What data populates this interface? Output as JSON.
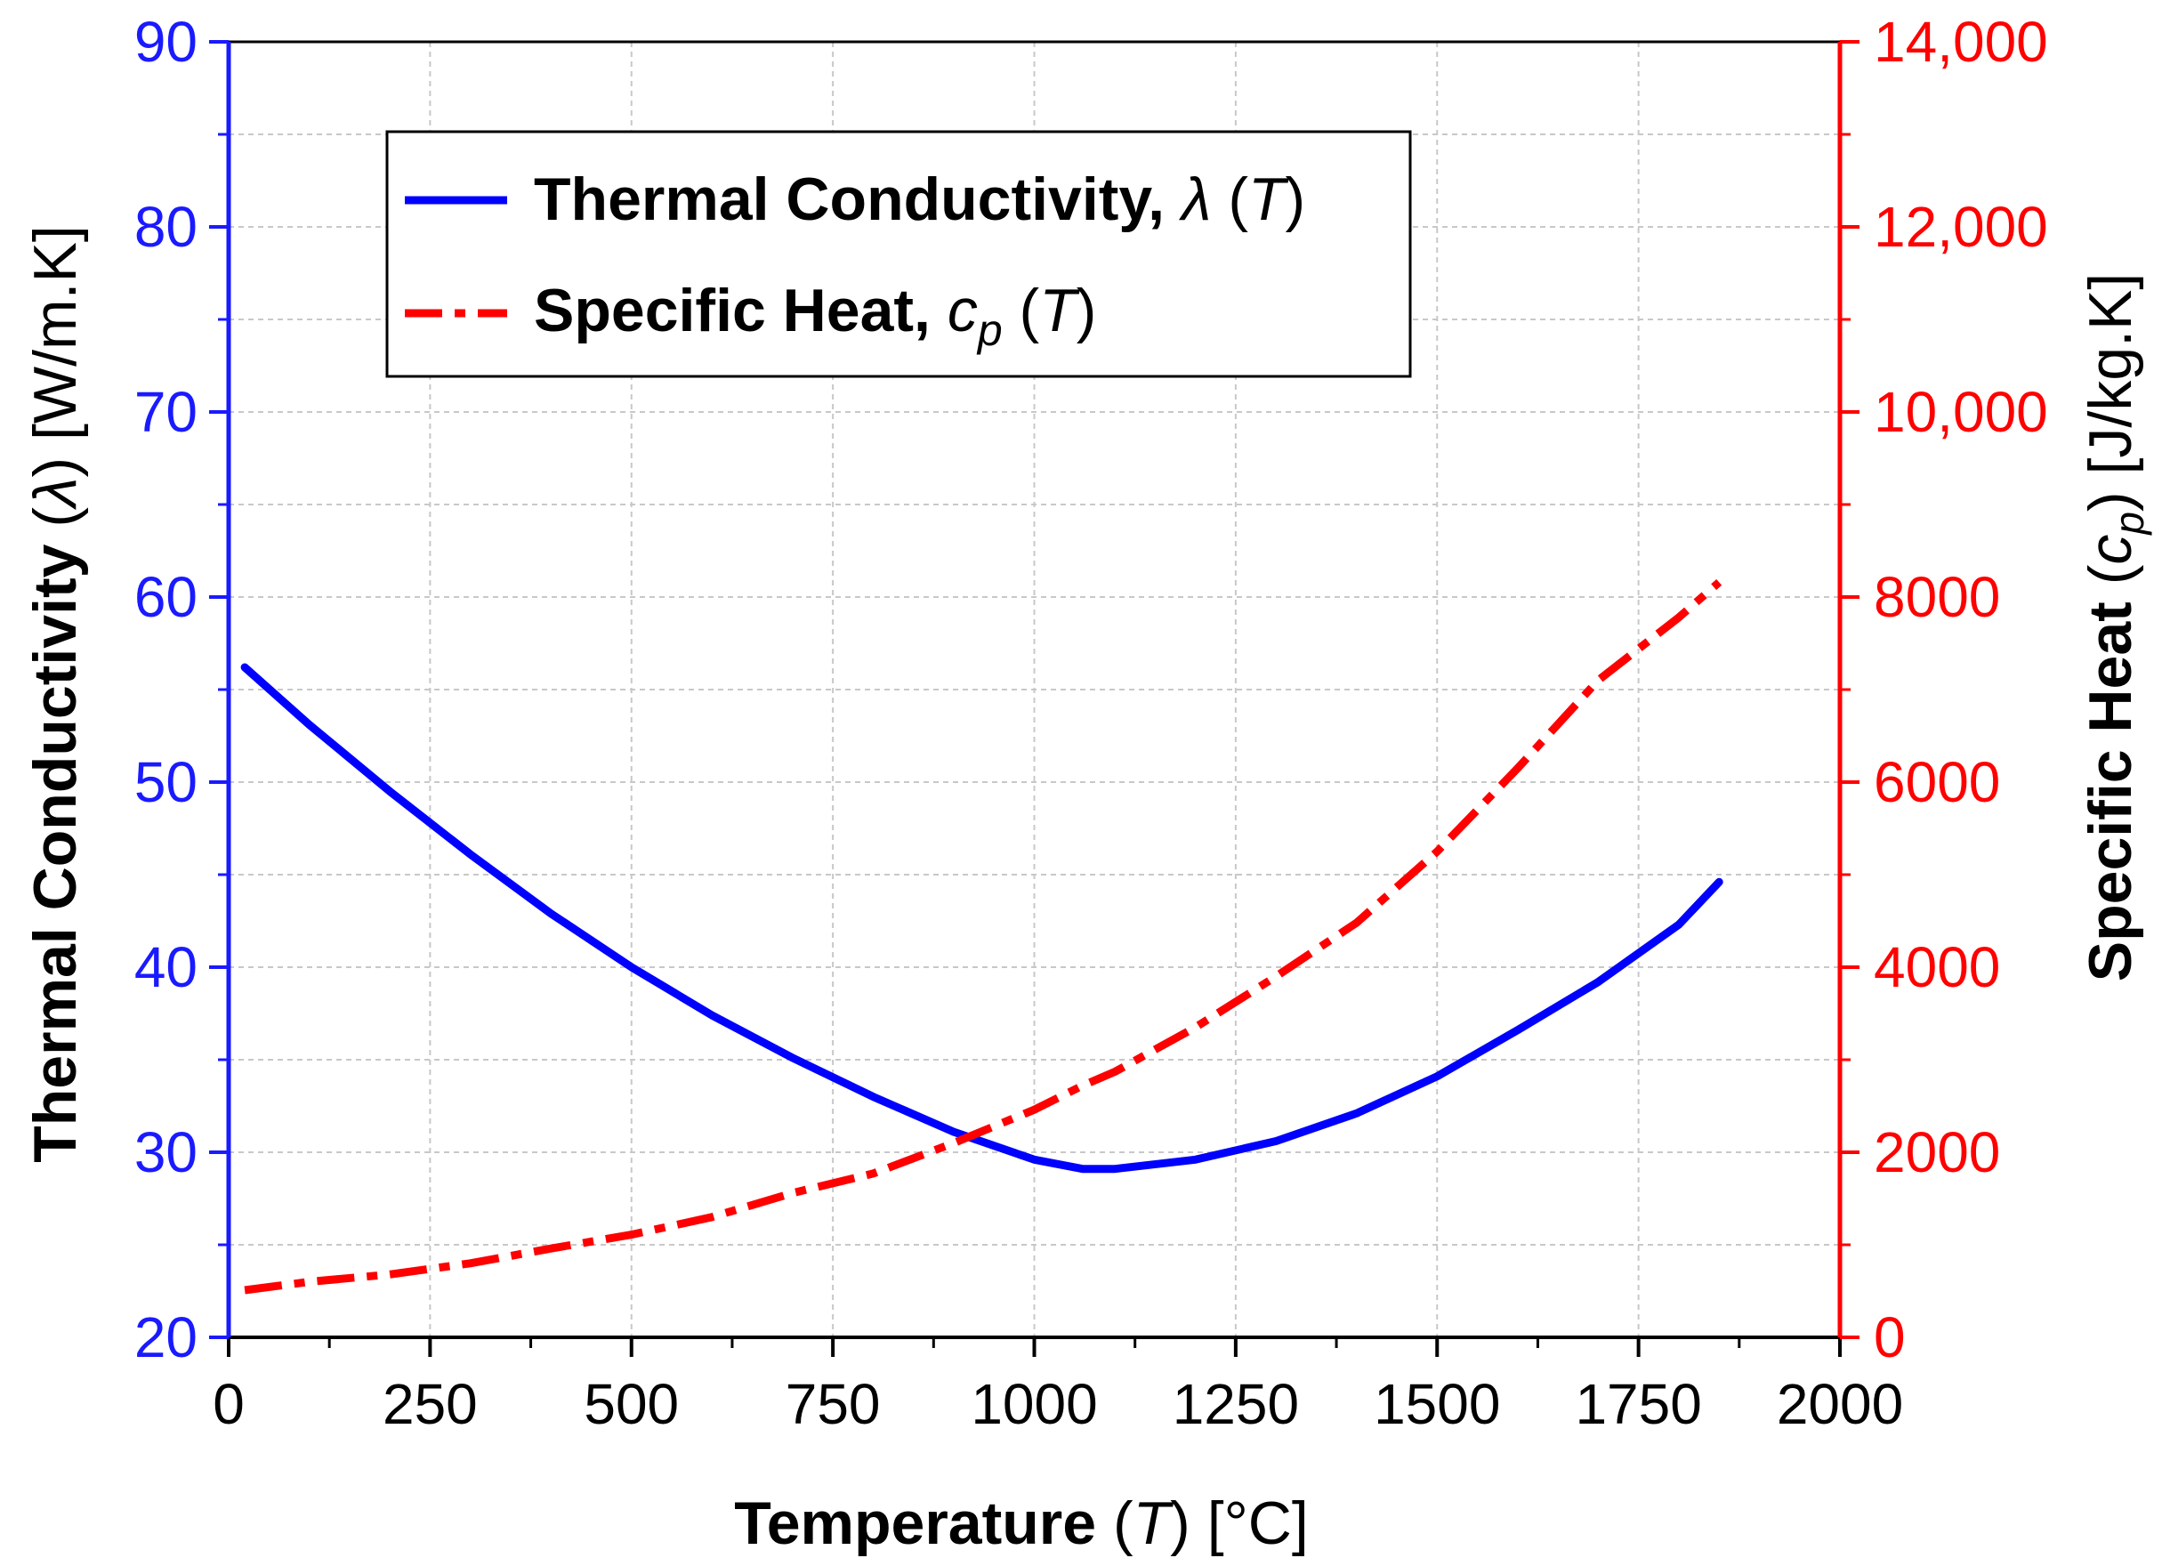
{
  "chart_data": {
    "type": "line",
    "x": [
      20,
      100,
      200,
      300,
      400,
      500,
      600,
      700,
      800,
      900,
      1000,
      1060,
      1100,
      1200,
      1300,
      1400,
      1500,
      1600,
      1700,
      1800,
      1850
    ],
    "series": [
      {
        "name": "Thermal Conductivity",
        "legend_prefix": "Thermal Conductivity, ",
        "legend_symbol": "λ",
        "legend_suffix": " (T)",
        "axis": "left",
        "color": "#0000ff",
        "style": "solid",
        "values": [
          56.2,
          53.1,
          49.5,
          46.1,
          42.9,
          40.0,
          37.4,
          35.1,
          33.0,
          31.1,
          29.6,
          29.1,
          29.1,
          29.6,
          30.6,
          32.1,
          34.1,
          36.6,
          39.2,
          42.3,
          44.6
        ]
      },
      {
        "name": "Specific Heat",
        "legend_prefix": "Specific Heat, ",
        "legend_symbol": "cp",
        "legend_suffix": " (T)",
        "axis": "right",
        "color": "#ff0000",
        "style": "dash-dot",
        "values": [
          510,
          600,
          680,
          800,
          960,
          1110,
          1300,
          1560,
          1770,
          2100,
          2460,
          2720,
          2870,
          3350,
          3900,
          4480,
          5250,
          6150,
          7100,
          7780,
          8160
        ]
      }
    ],
    "xlabel": "Temperature (T) [°C]",
    "xlabel_parts": [
      "Temperature ",
      "(",
      "T",
      ") [°C]"
    ],
    "ylabel_left": "Thermal Conductivity (λ) [W/m.K]",
    "ylabel_left_parts": [
      "Thermal Conductivity ",
      "(",
      "λ",
      ") [W/m.K]"
    ],
    "ylabel_right": "Specific Heat (cp) [J/kg.K]",
    "ylabel_right_parts": [
      "Specific Heat ",
      "(",
      "c",
      "p",
      ") [J/kg.K]"
    ],
    "xlim": [
      0,
      2000
    ],
    "ylim_left": [
      20,
      90
    ],
    "ylim_right": [
      0,
      14000
    ],
    "xticks": [
      0,
      250,
      500,
      750,
      1000,
      1250,
      1500,
      1750,
      2000
    ],
    "xtick_labels": [
      "0",
      "250",
      "500",
      "750",
      "1000",
      "1250",
      "1500",
      "1750",
      "2000"
    ],
    "yticks_left": [
      20,
      30,
      40,
      50,
      60,
      70,
      80,
      90
    ],
    "ytick_labels_left": [
      "20",
      "30",
      "40",
      "50",
      "60",
      "70",
      "80",
      "90"
    ],
    "yticks_right": [
      0,
      2000,
      4000,
      6000,
      8000,
      10000,
      12000,
      14000
    ],
    "ytick_labels_right": [
      "0",
      "2000",
      "4000",
      "6000",
      "8000",
      "10,000",
      "12,000",
      "14,000"
    ],
    "grid": true,
    "legend_position": "top-left",
    "colors": {
      "left_axis": "#1a1aff",
      "right_axis": "#ff0000",
      "grid": "#c8c8c8"
    }
  }
}
